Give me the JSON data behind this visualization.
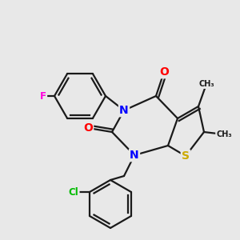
{
  "background_color": "#e8e8e8",
  "atom_colors": {
    "C": "#1a1a1a",
    "N": "#0000ff",
    "O": "#ff0000",
    "S": "#ccaa00",
    "F": "#ff00dd",
    "Cl": "#00bb00"
  },
  "bond_color": "#1a1a1a",
  "bond_lw": 1.6,
  "figsize": [
    3.0,
    3.0
  ],
  "dpi": 100
}
